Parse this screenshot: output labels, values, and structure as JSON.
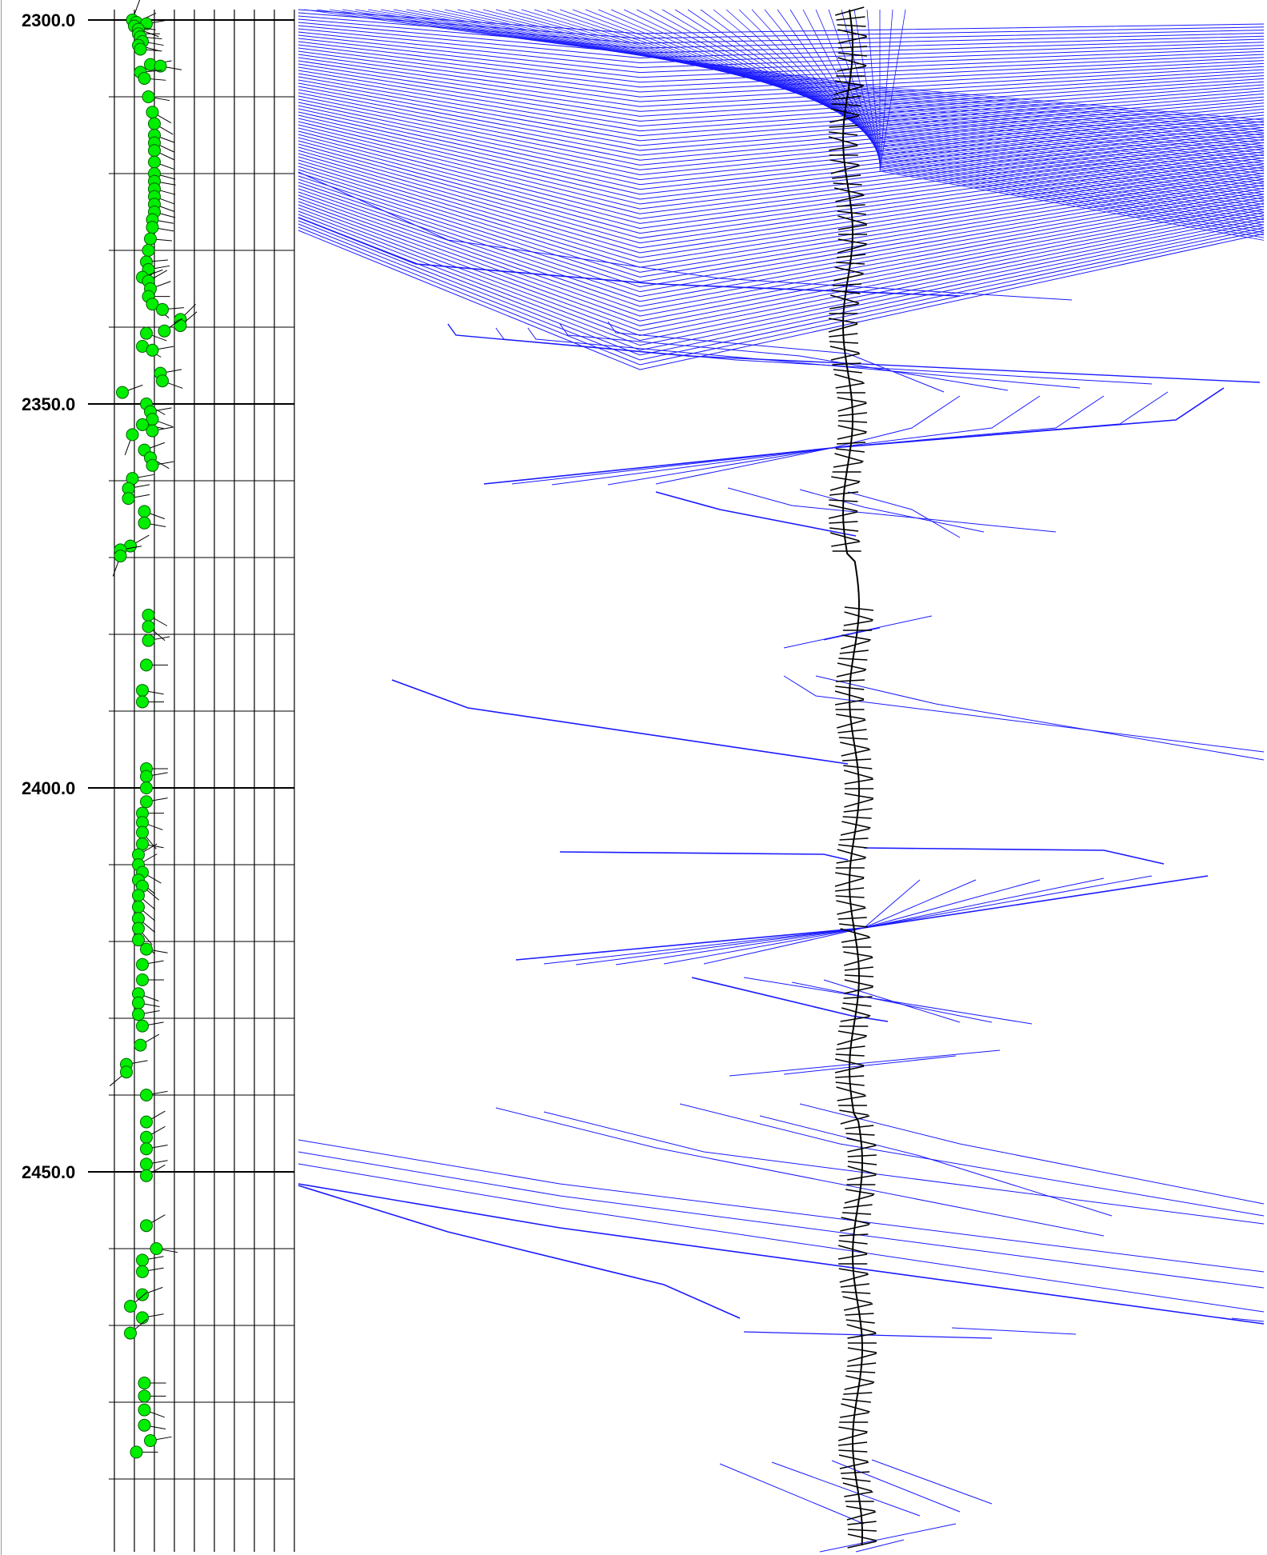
{
  "chart_data": {
    "type": "scatter",
    "title": "",
    "xlabel": "",
    "ylabel": "",
    "depth_axis": {
      "range": [
        2300.0,
        2502.0
      ],
      "major_ticks": [
        "2300.0",
        "2350.0",
        "2400.0",
        "2450.0"
      ],
      "major_values": [
        2300,
        2350,
        2400,
        2450
      ],
      "minor_step": 10,
      "grid": true
    },
    "dip_track": {
      "x_range": [
        0,
        90
      ],
      "grid_x": [
        0,
        10,
        20,
        30,
        40,
        50,
        60,
        70,
        80,
        90
      ],
      "marker_color": "#00ee00",
      "tadpoles": [
        [
          2300.0,
          9,
          20
        ],
        [
          2300.3,
          11,
          65
        ],
        [
          2300.5,
          16,
          80
        ],
        [
          2300.8,
          10,
          100
        ],
        [
          2301.2,
          12,
          110
        ],
        [
          2301.8,
          12,
          90
        ],
        [
          2302.2,
          13,
          95
        ],
        [
          2302.8,
          14,
          100
        ],
        [
          2303.3,
          12,
          105
        ],
        [
          2303.8,
          13,
          95
        ],
        [
          2305.8,
          18,
          80
        ],
        [
          2306.0,
          23,
          100
        ],
        [
          2306.8,
          13,
          85
        ],
        [
          2307.6,
          15,
          95
        ],
        [
          2310.0,
          17,
          100
        ],
        [
          2312.0,
          19,
          120
        ],
        [
          2313.5,
          20,
          120
        ],
        [
          2315.0,
          20,
          110
        ],
        [
          2316.0,
          20,
          115
        ],
        [
          2317.0,
          20,
          115
        ],
        [
          2318.5,
          20,
          110
        ],
        [
          2320.0,
          20,
          105
        ],
        [
          2321.0,
          20,
          100
        ],
        [
          2322.0,
          20,
          105
        ],
        [
          2323.0,
          20,
          110
        ],
        [
          2324.0,
          20,
          110
        ],
        [
          2325.0,
          20,
          105
        ],
        [
          2326.0,
          19,
          100
        ],
        [
          2327.0,
          19,
          100
        ],
        [
          2328.5,
          18,
          95
        ],
        [
          2330.0,
          17,
          90
        ],
        [
          2331.5,
          16,
          85
        ],
        [
          2332.5,
          17,
          80
        ],
        [
          2333.5,
          14,
          70
        ],
        [
          2334.0,
          17,
          60
        ],
        [
          2335.0,
          18,
          70
        ],
        [
          2336.0,
          17,
          90
        ],
        [
          2337.0,
          19,
          130
        ],
        [
          2337.7,
          24,
          85
        ],
        [
          2339.0,
          33,
          45
        ],
        [
          2339.8,
          33,
          50
        ],
        [
          2340.5,
          25,
          55
        ],
        [
          2340.8,
          16,
          110
        ],
        [
          2342.5,
          14,
          120
        ],
        [
          2343.0,
          19,
          80
        ],
        [
          2346.0,
          23,
          80
        ],
        [
          2347.0,
          24,
          110
        ],
        [
          2348.5,
          4,
          70
        ],
        [
          2350.0,
          16,
          120
        ],
        [
          2351.0,
          18,
          80
        ],
        [
          2352.0,
          19,
          110
        ],
        [
          2352.7,
          14,
          100
        ],
        [
          2353.5,
          19,
          80
        ],
        [
          2354.0,
          9,
          200
        ],
        [
          2356.0,
          15,
          70
        ],
        [
          2357.0,
          18,
          120
        ],
        [
          2358.0,
          19,
          80
        ],
        [
          2359.7,
          9,
          80
        ],
        [
          2361.0,
          7,
          80
        ],
        [
          2362.3,
          7,
          80
        ],
        [
          2364.0,
          15,
          110
        ],
        [
          2365.5,
          15,
          100
        ],
        [
          2368.5,
          8,
          60
        ],
        [
          2369.0,
          3,
          80
        ],
        [
          2369.8,
          3,
          200
        ],
        [
          2377.5,
          17,
          120
        ],
        [
          2379.0,
          17,
          130
        ],
        [
          2380.8,
          17,
          80
        ],
        [
          2384.0,
          16,
          90
        ],
        [
          2387.3,
          14,
          100
        ],
        [
          2388.8,
          14,
          90
        ],
        [
          2397.5,
          16,
          90
        ],
        [
          2398.5,
          16,
          80
        ],
        [
          2400.0,
          16,
          90
        ],
        [
          2401.8,
          16,
          80
        ],
        [
          2403.3,
          14,
          90
        ],
        [
          2404.5,
          14,
          110
        ],
        [
          2405.8,
          14,
          140
        ],
        [
          2407.3,
          14,
          100
        ],
        [
          2408.7,
          12,
          60
        ],
        [
          2410.0,
          12,
          60
        ],
        [
          2411.0,
          14,
          120
        ],
        [
          2412.0,
          12,
          130
        ],
        [
          2412.8,
          14,
          130
        ],
        [
          2414.0,
          12,
          130
        ],
        [
          2415.5,
          12,
          130
        ],
        [
          2417.0,
          12,
          130
        ],
        [
          2418.3,
          12,
          140
        ],
        [
          2419.8,
          12,
          130
        ],
        [
          2421.0,
          16,
          100
        ],
        [
          2423.0,
          14,
          80
        ],
        [
          2425.0,
          14,
          90
        ],
        [
          2426.8,
          12,
          110
        ],
        [
          2428.0,
          12,
          100
        ],
        [
          2429.5,
          12,
          80
        ],
        [
          2431.0,
          14,
          80
        ],
        [
          2433.5,
          13,
          60
        ],
        [
          2436.0,
          6,
          80
        ],
        [
          2437.0,
          6,
          230
        ],
        [
          2440.0,
          16,
          80
        ],
        [
          2443.5,
          16,
          60
        ],
        [
          2445.5,
          16,
          60
        ],
        [
          2447.0,
          16,
          80
        ],
        [
          2449.0,
          16,
          80
        ],
        [
          2450.5,
          16,
          60
        ],
        [
          2457.0,
          16,
          60
        ],
        [
          2460.0,
          21,
          100
        ],
        [
          2461.5,
          14,
          80
        ],
        [
          2463.0,
          14,
          80
        ],
        [
          2466.0,
          14,
          70
        ],
        [
          2467.5,
          8,
          50
        ],
        [
          2469.0,
          14,
          80
        ],
        [
          2471.0,
          8,
          50
        ],
        [
          2477.5,
          15,
          90
        ],
        [
          2479.2,
          15,
          90
        ],
        [
          2481.0,
          15,
          110
        ],
        [
          2483.0,
          15,
          100
        ],
        [
          2485.0,
          18,
          80
        ],
        [
          2486.5,
          11,
          90
        ]
      ]
    },
    "dip_line_track": {
      "x_range": [
        0,
        1
      ],
      "line_color": "#0000ff",
      "curve_color": "#000000"
    }
  }
}
